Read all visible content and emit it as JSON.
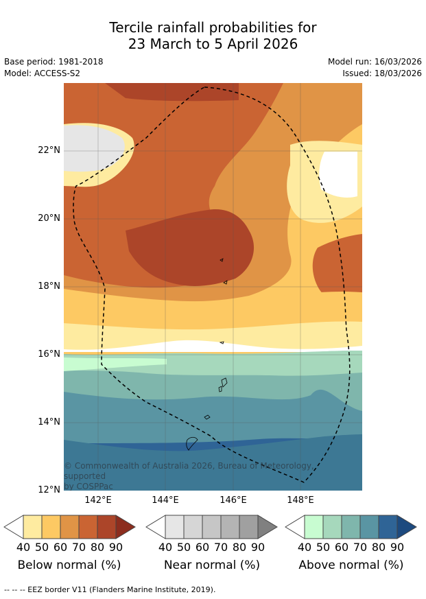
{
  "title_line1": "Tercile rainfall probabilities for",
  "title_line2": "23 March to 5 April 2026",
  "meta": {
    "base_period": "Base period: 1981-2018",
    "model": "Model: ACCESS-S2",
    "model_run": "Model run: 16/03/2026",
    "issued": "Issued: 18/03/2026"
  },
  "map": {
    "lat_labels": [
      "22°N",
      "20°N",
      "18°N",
      "16°N",
      "14°N",
      "12°N"
    ],
    "lon_labels": [
      "142°E",
      "144°E",
      "146°E",
      "148°E"
    ],
    "copyright_line1": "© Commonwealth of Australia 2026, Bureau of Meteorology, supported",
    "copyright_line2": "by COSPPac"
  },
  "colorbars": [
    {
      "title": "Below normal (%)",
      "ticks": [
        "40",
        "50",
        "60",
        "70",
        "80",
        "90"
      ],
      "colors": [
        "#ffffff",
        "#feeba0",
        "#fdc963",
        "#e09446",
        "#ca6433",
        "#ac4529",
        "#8c2d1e"
      ]
    },
    {
      "title": "Near normal (%)",
      "ticks": [
        "40",
        "50",
        "60",
        "70",
        "80",
        "90"
      ],
      "colors": [
        "#ffffff",
        "#e6e6e6",
        "#d6d6d6",
        "#c6c6c6",
        "#b4b4b4",
        "#a0a0a0",
        "#808080"
      ]
    },
    {
      "title": "Above normal (%)",
      "ticks": [
        "40",
        "50",
        "60",
        "70",
        "80",
        "90"
      ],
      "colors": [
        "#ffffff",
        "#c8fcd1",
        "#a6d8bc",
        "#7fb6ac",
        "#5a95a3",
        "#2f6496",
        "#1d4a7f"
      ]
    }
  ],
  "footnote": "--  --  -- EEZ border V11 (Flanders Marine Institute, 2019)."
}
